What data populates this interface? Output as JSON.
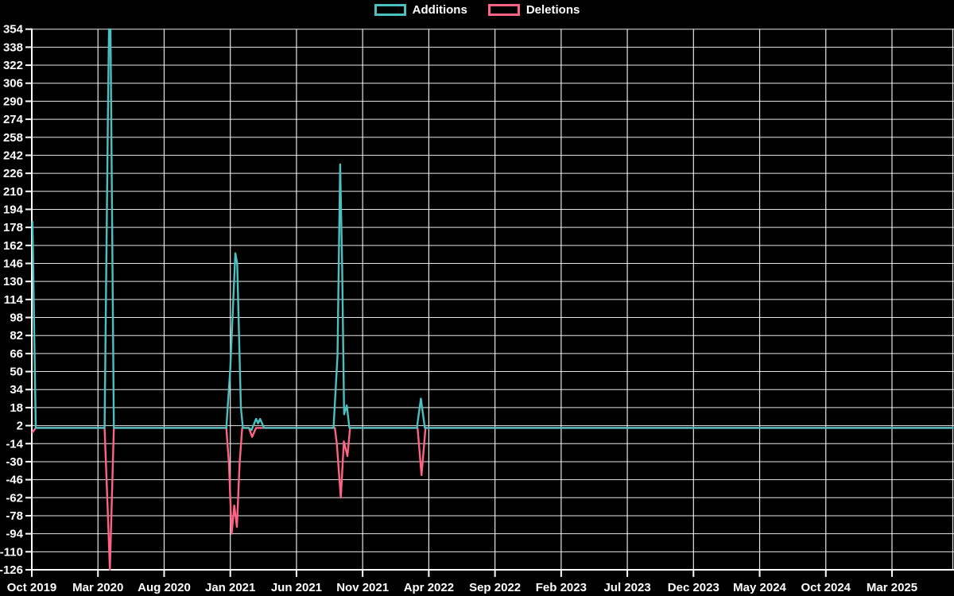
{
  "page": {
    "background": "#000000"
  },
  "legend": {
    "position": "top-center",
    "items": [
      {
        "label": "Additions",
        "color": "#4bc0c0"
      },
      {
        "label": "Deletions",
        "color": "#ff6384"
      }
    ]
  },
  "chart_data": {
    "type": "line",
    "title": "",
    "xlabel": "",
    "ylabel": "",
    "background": "#000000",
    "grid": true,
    "grid_color": "#ffffff",
    "text_color": "#ffffff",
    "legend_position": "top-center",
    "x_unit": "months since Oct 2019",
    "x_ticks": [
      {
        "m": 0,
        "label": "Oct 2019"
      },
      {
        "m": 5,
        "label": "Mar 2020"
      },
      {
        "m": 10,
        "label": "Aug 2020"
      },
      {
        "m": 15,
        "label": "Jan 2021"
      },
      {
        "m": 20,
        "label": "Jun 2021"
      },
      {
        "m": 25,
        "label": "Nov 2021"
      },
      {
        "m": 30,
        "label": "Apr 2022"
      },
      {
        "m": 35,
        "label": "Sep 2022"
      },
      {
        "m": 40,
        "label": "Feb 2023"
      },
      {
        "m": 45,
        "label": "Jul 2023"
      },
      {
        "m": 50,
        "label": "Dec 2023"
      },
      {
        "m": 55,
        "label": "May 2024"
      },
      {
        "m": 60,
        "label": "Oct 2024"
      },
      {
        "m": 65,
        "label": "Mar 2025"
      }
    ],
    "ylim": [
      -126,
      354
    ],
    "y_ticks": [
      -126,
      -110,
      -94,
      -78,
      -62,
      -46,
      -30,
      -14,
      2,
      18,
      34,
      50,
      66,
      82,
      98,
      114,
      130,
      146,
      162,
      178,
      194,
      210,
      226,
      242,
      258,
      274,
      290,
      306,
      322,
      338,
      354
    ],
    "series": [
      {
        "name": "Additions",
        "color": "#4bc0c0",
        "points": [
          [
            0.05,
            183
          ],
          [
            0.3,
            0
          ],
          [
            5.5,
            0
          ],
          [
            5.75,
            275
          ],
          [
            5.9,
            420
          ],
          [
            6.2,
            0
          ],
          [
            14.7,
            0
          ],
          [
            15.0,
            53
          ],
          [
            15.38,
            155
          ],
          [
            15.52,
            146
          ],
          [
            15.8,
            18
          ],
          [
            15.95,
            0
          ],
          [
            16.4,
            0
          ],
          [
            16.6,
            -2
          ],
          [
            16.95,
            8
          ],
          [
            17.1,
            4
          ],
          [
            17.25,
            8
          ],
          [
            17.55,
            0
          ],
          [
            22.8,
            0
          ],
          [
            23.1,
            64
          ],
          [
            23.3,
            234
          ],
          [
            23.45,
            145
          ],
          [
            23.6,
            12
          ],
          [
            23.8,
            20
          ],
          [
            24.0,
            0
          ],
          [
            29.1,
            0
          ],
          [
            29.4,
            26
          ],
          [
            29.7,
            0
          ],
          [
            69.6,
            0
          ]
        ]
      },
      {
        "name": "Deletions",
        "color": "#ff6384",
        "points": [
          [
            0.05,
            -4
          ],
          [
            0.3,
            0
          ],
          [
            5.5,
            0
          ],
          [
            5.75,
            -77
          ],
          [
            5.9,
            -126
          ],
          [
            6.2,
            0
          ],
          [
            14.7,
            0
          ],
          [
            14.9,
            -32
          ],
          [
            15.1,
            -94
          ],
          [
            15.3,
            -69
          ],
          [
            15.5,
            -88
          ],
          [
            15.7,
            -32
          ],
          [
            15.9,
            0
          ],
          [
            16.4,
            0
          ],
          [
            16.65,
            -8
          ],
          [
            16.95,
            0
          ],
          [
            22.9,
            0
          ],
          [
            23.05,
            -14
          ],
          [
            23.35,
            -62
          ],
          [
            23.58,
            -12
          ],
          [
            23.85,
            -25
          ],
          [
            24.05,
            0
          ],
          [
            29.15,
            0
          ],
          [
            29.45,
            -42
          ],
          [
            29.75,
            0
          ],
          [
            69.6,
            0
          ]
        ]
      }
    ]
  }
}
